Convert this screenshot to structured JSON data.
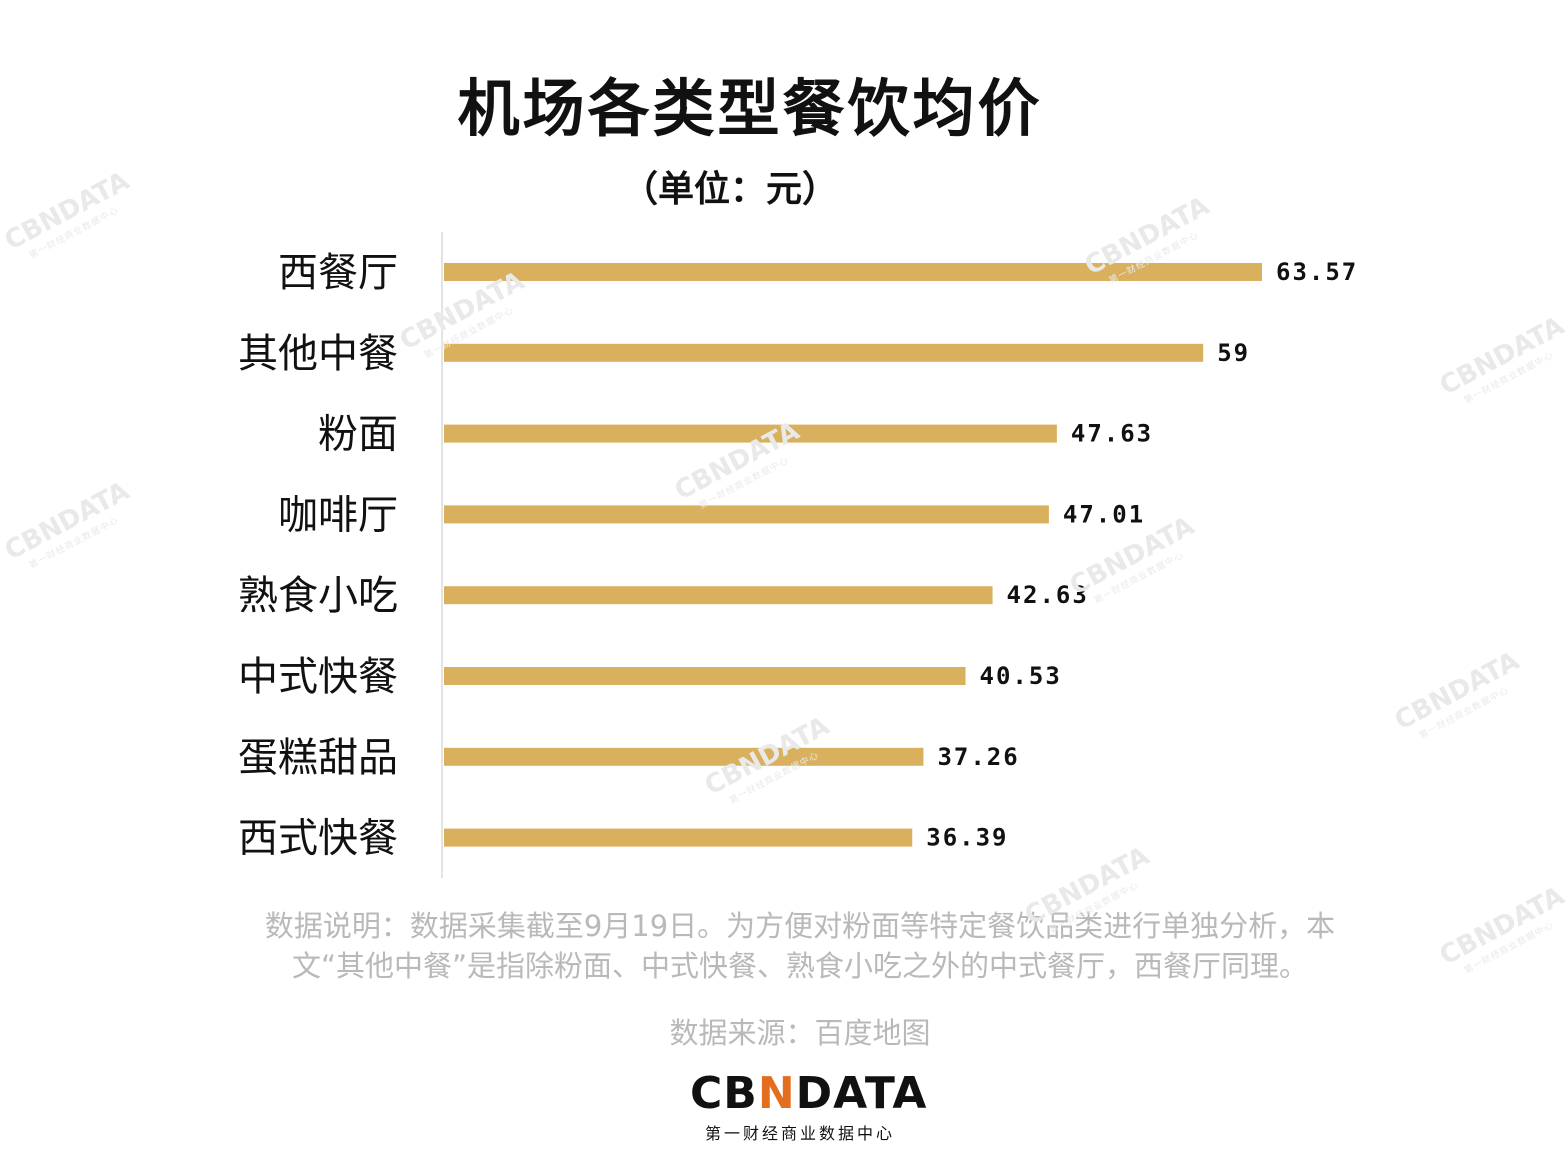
{
  "chart_data": {
    "type": "bar",
    "orientation": "horizontal",
    "title": "机场各类型餐饮均价",
    "subtitle": "（单位：元）",
    "categories": [
      "西餐厅",
      "其他中餐",
      "粉面",
      "咖啡厅",
      "熟食小吃",
      "中式快餐",
      "蛋糕甜品",
      "西式快餐"
    ],
    "values": [
      63.57,
      59,
      47.63,
      47.01,
      42.63,
      40.53,
      37.26,
      36.39
    ],
    "value_labels": [
      "63.57",
      "59",
      "47.63",
      "47.01",
      "42.63",
      "40.53",
      "37.26",
      "36.39"
    ],
    "bar_color": "#d9b15e",
    "xlim": [
      0,
      63.57
    ],
    "grid": false,
    "legend": "none"
  },
  "note": {
    "line1": "数据说明：数据采集截至9月19日。为方便对粉面等特定餐饮品类进行单独分析，本",
    "line2": "文“其他中餐”是指除粉面、中式快餐、熟食小吃之外的中式餐厅，西餐厅同理。"
  },
  "source": "数据来源：百度地图",
  "logo": {
    "pre": "CB",
    "accent": "N",
    "post": "DATA",
    "subtitle": "第一财经商业数据中心"
  },
  "watermark": {
    "text": "CBNDATA",
    "sub": "第一财经商业数据中心"
  }
}
